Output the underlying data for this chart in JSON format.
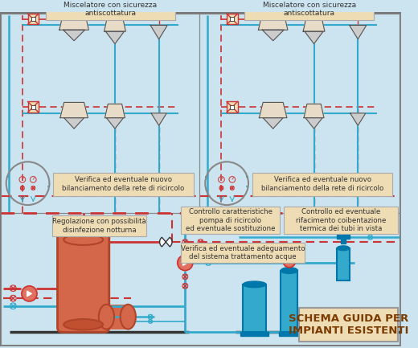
{
  "bg": "#cce4ef",
  "red": "#cc3333",
  "cyan": "#33aacc",
  "dark": "#333333",
  "gray": "#888888",
  "boiler_fill": "#d4674a",
  "boiler_edge": "#b04428",
  "tank_fill": "#33aacc",
  "tank_edge": "#0077aa",
  "pump_fill": "#e07060",
  "label_bg": "#eedcb4",
  "label_edge": "#aaaaaa",
  "schema_text": "#7a3a00",
  "fixture_fill": "#e8dcc8",
  "fixture_edge": "#555555",
  "gray_fill": "#cccccc",
  "white": "#ffffff",
  "title": "SCHEMA GUIDA PER\nIMPIANTI ESISTENTI",
  "lbl_mixer": "Miscelatore con sicurezza\nantiscottatura",
  "lbl_balance": "Verifica ed eventuale nuovo\nbilanciamento della rete di ricircolo",
  "lbl_regulation": "Regolazione con possibilità\ndisinfezione notturna",
  "lbl_pump": "Controllo caratteristiche\npompa di ricircolo\ned eventuale sostituzione",
  "lbl_insulation": "Controllo ed eventuale\nrifacimento coibentazione\ntermica dei tubi in vista",
  "lbl_water": "Verifica ed eventuale adeguamento\ndel sistema trattamento acque"
}
